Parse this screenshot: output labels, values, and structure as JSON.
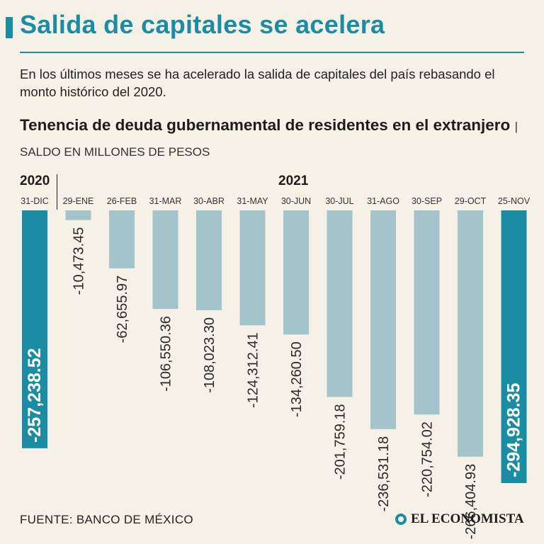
{
  "header": {
    "title": "Salida de capitales se acelera",
    "subtitle": "En los últimos meses se ha acelerado la salida de capitales del país rebasando el monto histórico del 2020.",
    "chart_title": "Tenencia de deuda gubernamental de residentes en el extranjero",
    "chart_unit": "| SALDO EN MILLONES DE PESOS"
  },
  "colors": {
    "accent": "#1a8ca3",
    "bar_light": "#a3c4cb",
    "background": "#f6f1e7"
  },
  "chart_data": {
    "type": "bar",
    "title": "Tenencia de deuda gubernamental de residentes en el extranjero",
    "ylabel": "Saldo en millones de pesos",
    "year_labels": [
      "2020",
      "2021"
    ],
    "categories": [
      "31-DIC",
      "29-ENE",
      "26-FEB",
      "31-MAR",
      "30-ABR",
      "31-MAY",
      "30-JUN",
      "30-JUL",
      "31-AGO",
      "30-SEP",
      "29-OCT",
      "25-NOV"
    ],
    "values": [
      -257238.52,
      -10473.45,
      -62655.97,
      -106550.36,
      -108023.3,
      -124312.41,
      -134260.5,
      -201759.18,
      -236531.18,
      -220754.02,
      -266404.93,
      -294928.35
    ],
    "value_labels": [
      "-257,238.52",
      "-10,473.45",
      "-62,655.97",
      "-106,550.36",
      "-108,023.30",
      "-124,312.41",
      "-134,260.50",
      "-201,759.18",
      "-236,531.18",
      "-220,754.02",
      "-266,404.93",
      "-294,928.35"
    ],
    "highlight": [
      true,
      false,
      false,
      false,
      false,
      false,
      false,
      false,
      false,
      false,
      false,
      true
    ],
    "ylim": [
      -294928.35,
      0
    ]
  },
  "footer": {
    "source": "FUENTE: BANCO DE MÉXICO",
    "brand": "EL ECONOMISTA"
  }
}
